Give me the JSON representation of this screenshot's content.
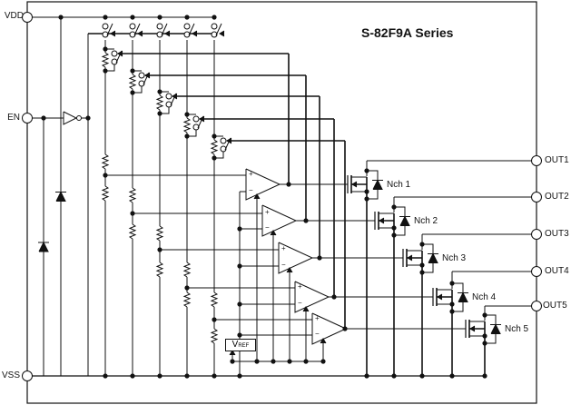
{
  "title": "S-82F9A Series",
  "pins": {
    "vdd": "VDD",
    "en": "EN",
    "vss": "VSS",
    "outputs": [
      "OUT1",
      "OUT2",
      "OUT3",
      "OUT4",
      "OUT5"
    ]
  },
  "transistors": [
    "Nch 1",
    "Nch 2",
    "Nch 3",
    "Nch 4",
    "Nch 5"
  ],
  "vref": {
    "main": "V",
    "sub": "REF"
  },
  "comparator_signs": {
    "plus": "+",
    "minus": "−"
  },
  "colors": {
    "line": "#111111",
    "background": "#ffffff"
  }
}
